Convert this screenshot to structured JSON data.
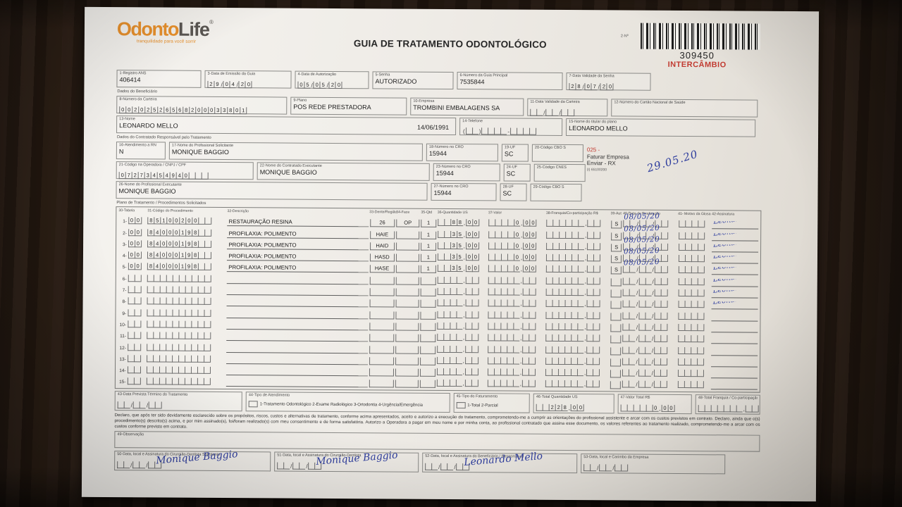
{
  "page": {
    "title": "GUIA DE TRATAMENTO ODONTOLÓGICO",
    "code_label": "2-Nº",
    "barcode_number": "309450",
    "barcode_tag": "INTERCÂMBIO"
  },
  "logo": {
    "part1": "Odonto",
    "part2": "Life",
    "reg": "®",
    "tagline": "tranquilidade para você sorrir"
  },
  "top_fields": {
    "f1": {
      "label": "1-Registro ANS",
      "value": "406414"
    },
    "f3": {
      "label": "3-Data de Emissão da Guia",
      "value": "29/04/20"
    },
    "f4": {
      "label": "4-Data de Autorização",
      "value": "05/05/20"
    },
    "f5": {
      "label": "5-Senha",
      "value": "AUTORIZADO"
    },
    "f6": {
      "label": "6-Número da Guia Principal",
      "value": "7535844"
    },
    "f7": {
      "label": "7-Data Validade da Senha",
      "value": "28/07/20"
    }
  },
  "beneficiario": {
    "section_label": "Dados do Beneficiário",
    "f8": {
      "label": "8-Número da Carteira",
      "value": "00202526568200033801"
    },
    "f9": {
      "label": "9-Plano",
      "value": "POS REDE PRESTADORA"
    },
    "f10": {
      "label": "10-Empresa",
      "value": "TROMBINI EMBALAGENS SA"
    },
    "f11": {
      "label": "11-Data Validade da Carteira",
      "value": ""
    },
    "f12": {
      "label": "12-Número do Cartão Nacional de Saúde",
      "value": ""
    },
    "f13": {
      "label": "13-Nome",
      "value": "LEONARDO MELLO",
      "birth": "14/06/1991"
    },
    "f14": {
      "label": "14-Telefone",
      "value": ""
    },
    "f15": {
      "label": "15-Nome do titular do plano",
      "value": "LEONARDO MELLO"
    }
  },
  "contratado": {
    "section_label": "Dados do Contratado Responsável pelo Tratamento",
    "f16": {
      "label": "16-Atendimento a RN",
      "value": "N"
    },
    "f17": {
      "label": "17-Nome do Profissional Solicitante",
      "value": "MONIQUE BAGGIO"
    },
    "f18": {
      "label": "18-Número no CRO",
      "value": "15944"
    },
    "f19": {
      "label": "19-UF",
      "value": "SC"
    },
    "f20": {
      "label": "20-Código CBO S",
      "value": ""
    },
    "f21": {
      "label": "21-Código na Operadora / CNPJ / CPF",
      "value": "07273454940"
    },
    "f22": {
      "label": "22-Nome do Contratado Executante",
      "value": "MONIQUE BAGGIO"
    },
    "f23": {
      "label": "23-Número no CRO",
      "value": "15944"
    },
    "f24": {
      "label": "24-UF",
      "value": "SC"
    },
    "f25": {
      "label": "25-Código CNES",
      "value": ""
    },
    "f26": {
      "label": "26-Nome do Profissional Executante",
      "value": "MONIQUE BAGGIO"
    },
    "f27": {
      "label": "27-Número no CRO",
      "value": "15944"
    },
    "f28": {
      "label": "28-UF",
      "value": "SC"
    },
    "f29": {
      "label": "29-Código CBO S",
      "value": ""
    },
    "note": {
      "code": "025 -",
      "line1": "Faturar Empresa",
      "line2": "Enviar - RX",
      "line3": "(I) 65100200"
    },
    "handwritten_date": "29.05.20"
  },
  "plan": {
    "section_label": "Plano de Tratamento / Procedimentos Solicitados",
    "headers": {
      "tabela": "30-Tabela",
      "codigo": "31-Código do Procedimento",
      "desc": "32-Descrição",
      "dente": "33-Dente/Região",
      "face": "34-Face",
      "qtd": "35-Qtd",
      "us": "36-Quantidade US",
      "valor": "37-Valor",
      "franquia": "38-Franquia/Co-participação R$",
      "aut": "39-Aut",
      "data": "40-Data de Realização",
      "glosa": "41- Motivo da Glosa",
      "sig": "42-Assinatura"
    },
    "rows": [
      {
        "n": "1",
        "tabela": "00",
        "codigo": "85100200",
        "desc": "RESTAURAÇÃO RESINA",
        "dente": "26",
        "face": "OP",
        "qtd": "1",
        "us": "88,00",
        "valor": "0,00",
        "franquia": "",
        "aut": "S",
        "data": "08/05/20",
        "glosa": "",
        "sig": "Leonardo"
      },
      {
        "n": "2",
        "tabela": "00",
        "codigo": "84000198",
        "desc": "PROFILAXIA: POLIMENTO",
        "dente": "HAIE",
        "face": "",
        "qtd": "1",
        "us": "35,00",
        "valor": "0,00",
        "franquia": "",
        "aut": "S",
        "data": "08/05/20",
        "glosa": "",
        "sig": "Leonardo"
      },
      {
        "n": "3",
        "tabela": "00",
        "codigo": "84000198",
        "desc": "PROFILAXIA: POLIMENTO",
        "dente": "HAID",
        "face": "",
        "qtd": "1",
        "us": "35,00",
        "valor": "0,00",
        "franquia": "",
        "aut": "S",
        "data": "08/05/20",
        "glosa": "",
        "sig": "Leonardo"
      },
      {
        "n": "4",
        "tabela": "00",
        "codigo": "84000198",
        "desc": "PROFILAXIA: POLIMENTO",
        "dente": "HASD",
        "face": "",
        "qtd": "1",
        "us": "35,00",
        "valor": "0,00",
        "franquia": "",
        "aut": "S",
        "data": "08/05/20",
        "glosa": "",
        "sig": "Leonardo"
      },
      {
        "n": "5",
        "tabela": "00",
        "codigo": "84000198",
        "desc": "PROFILAXIA: POLIMENTO",
        "dente": "HASE",
        "face": "",
        "qtd": "1",
        "us": "35,00",
        "valor": "0,00",
        "franquia": "",
        "aut": "S",
        "data": "08/05/20",
        "glosa": "",
        "sig": "Leonardo"
      },
      {
        "n": "6",
        "tabela": "",
        "codigo": "",
        "desc": "",
        "dente": "",
        "face": "",
        "qtd": "",
        "us": "",
        "valor": "",
        "franquia": "",
        "aut": "",
        "data": "",
        "glosa": "",
        "sig": "Leonardo"
      },
      {
        "n": "7",
        "tabela": "",
        "codigo": "",
        "desc": "",
        "dente": "",
        "face": "",
        "qtd": "",
        "us": "",
        "valor": "",
        "franquia": "",
        "aut": "",
        "data": "",
        "glosa": "",
        "sig": "Leonardo"
      },
      {
        "n": "8",
        "tabela": "",
        "codigo": "",
        "desc": "",
        "dente": "",
        "face": "",
        "qtd": "",
        "us": "",
        "valor": "",
        "franquia": "",
        "aut": "",
        "data": "",
        "glosa": "",
        "sig": "Leonardo"
      },
      {
        "n": "9",
        "tabela": "",
        "codigo": "",
        "desc": "",
        "dente": "",
        "face": "",
        "qtd": "",
        "us": "",
        "valor": "",
        "franquia": "",
        "aut": "",
        "data": "",
        "glosa": "",
        "sig": ""
      },
      {
        "n": "10",
        "tabela": "",
        "codigo": "",
        "desc": "",
        "dente": "",
        "face": "",
        "qtd": "",
        "us": "",
        "valor": "",
        "franquia": "",
        "aut": "",
        "data": "",
        "glosa": "",
        "sig": ""
      },
      {
        "n": "11",
        "tabela": "",
        "codigo": "",
        "desc": "",
        "dente": "",
        "face": "",
        "qtd": "",
        "us": "",
        "valor": "",
        "franquia": "",
        "aut": "",
        "data": "",
        "glosa": "",
        "sig": ""
      },
      {
        "n": "12",
        "tabela": "",
        "codigo": "",
        "desc": "",
        "dente": "",
        "face": "",
        "qtd": "",
        "us": "",
        "valor": "",
        "franquia": "",
        "aut": "",
        "data": "",
        "glosa": "",
        "sig": ""
      },
      {
        "n": "13",
        "tabela": "",
        "codigo": "",
        "desc": "",
        "dente": "",
        "face": "",
        "qtd": "",
        "us": "",
        "valor": "",
        "franquia": "",
        "aut": "",
        "data": "",
        "glosa": "",
        "sig": ""
      },
      {
        "n": "14",
        "tabela": "",
        "codigo": "",
        "desc": "",
        "dente": "",
        "face": "",
        "qtd": "",
        "us": "",
        "valor": "",
        "franquia": "",
        "aut": "",
        "data": "",
        "glosa": "",
        "sig": ""
      },
      {
        "n": "15",
        "tabela": "",
        "codigo": "",
        "desc": "",
        "dente": "",
        "face": "",
        "qtd": "",
        "us": "",
        "valor": "",
        "franquia": "",
        "aut": "",
        "data": "",
        "glosa": "",
        "sig": ""
      }
    ]
  },
  "footer": {
    "f43": {
      "label": "43-Data Prevista Término do Tratamento",
      "value": ""
    },
    "f44": {
      "label": "44-Tipo de Atendimento",
      "options": "1-Tratamento Odontológico  2-Exame Radiológico  3-Ortodontia  4-Urgência/Emergência"
    },
    "f45": {
      "label": "45-Tipo do Faturamento",
      "options": "1-Total  2-Parcial"
    },
    "f46": {
      "label": "46-Total Quantidade US",
      "value": "228,00"
    },
    "f47": {
      "label": "47-Valor Total R$",
      "value": "0,00"
    },
    "f48": {
      "label": "48-Total Franquia / Co-participação R$",
      "value": ""
    },
    "declaration": "Declaro, que após ter sido devidamente esclarecido sobre os propósitos, riscos, custos e alternativas de tratamento, conforme acima apresentados, aceito e autorizo a execução do tratamento, comprometendo-me a cumprir as orientações do profissional assistente e arcar com os custos previstos em contrato. Declaro, ainda que o(s) procedimento(s) descrito(s) acima, e por mim assinado(s), foi/foram realizado(s) com meu consentimento e de forma satisfatória. Autorizo a Operadora a pagar em meu nome e por minha conta, ao profissional contratado que assina esse documento, os valores referentes ao tratamento realizado, comprometendo-me a arcar com os custos conforme previsto em contrato.",
    "f49": {
      "label": "49-Observação"
    },
    "f50": {
      "label": "50-Data, local e Assinatura do Cirurgião-Dentista Solicitante",
      "sig": "Monique Baggio"
    },
    "f51": {
      "label": "51-Data, local e Assinatura do Cirurgião-Dentista",
      "sig": "Monique Baggio"
    },
    "f52": {
      "label": "52-Data, local e Assinatura do Beneficiário / Responsável",
      "sig": "Leonardo Mello"
    },
    "f53": {
      "label": "53-Data, local e Carimbo da Empresa"
    }
  },
  "colors": {
    "accent_orange": "#e8912d",
    "alert_red": "#c13a30",
    "ink_blue": "#2e3d9e"
  }
}
